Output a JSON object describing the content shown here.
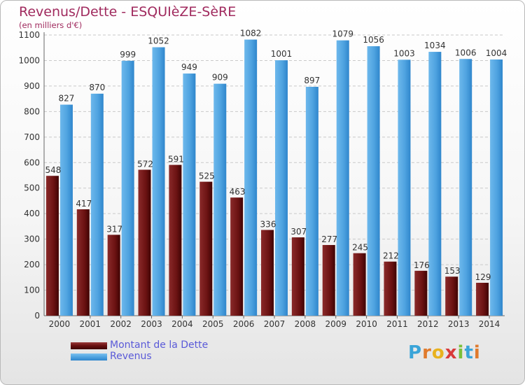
{
  "chart_data": {
    "type": "bar",
    "title": "Revenus/Dette - ESQUIèZE-SèRE",
    "subtitle": "(en milliers d'€)",
    "categories": [
      "2000",
      "2001",
      "2002",
      "2003",
      "2004",
      "2005",
      "2006",
      "2007",
      "2008",
      "2009",
      "2010",
      "2011",
      "2012",
      "2013",
      "2014"
    ],
    "series": [
      {
        "name": "Montant de la Dette",
        "color": "#6b1212",
        "values": [
          548,
          417,
          317,
          572,
          591,
          525,
          463,
          336,
          307,
          277,
          245,
          212,
          176,
          153,
          129
        ]
      },
      {
        "name": "Revenus",
        "color": "#4fa3e0",
        "values": [
          827,
          870,
          999,
          1052,
          949,
          909,
          1082,
          1001,
          897,
          1079,
          1056,
          1003,
          1034,
          1006,
          1004
        ]
      }
    ],
    "ylim": [
      0,
      1100
    ],
    "yticks": [
      0,
      100,
      200,
      300,
      400,
      500,
      600,
      700,
      800,
      900,
      1000,
      1100
    ],
    "grid": true,
    "legend_position": "bottom-left"
  },
  "logo": {
    "text_letters": [
      "P",
      "r",
      "o",
      "x",
      "i",
      "t",
      "i"
    ],
    "letter_colors": [
      "#3aa4d8",
      "#e07a2c",
      "#e8b21f",
      "#d83a3a",
      "#7bbf3a",
      "#3aa4d8",
      "#e07a2c"
    ]
  }
}
